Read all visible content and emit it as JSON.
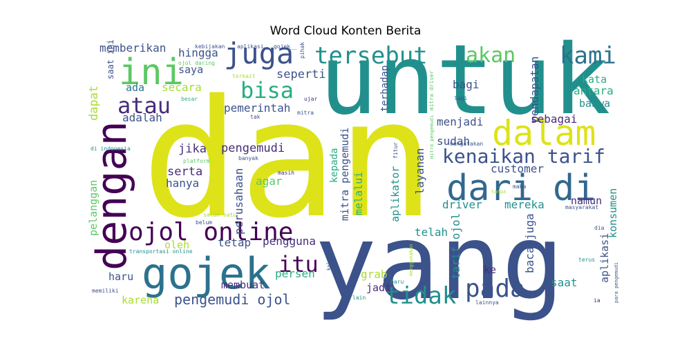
{
  "chart_data": {
    "type": "wordcloud",
    "title": "Word Cloud Konten Berita",
    "palette": [
      "#440154",
      "#472c7a",
      "#3b518b",
      "#2c718e",
      "#21908d",
      "#27ad81",
      "#5cc863",
      "#aadc32",
      "#dde318"
    ],
    "words": [
      {
        "text": "dan",
        "weight": 1.0,
        "color": "#dde318"
      },
      {
        "text": "untuk",
        "weight": 0.95,
        "color": "#21908d"
      },
      {
        "text": "yang",
        "weight": 0.93,
        "color": "#3b528b"
      },
      {
        "text": "dengan",
        "weight": 0.55,
        "color": "#440154"
      },
      {
        "text": "gojek",
        "weight": 0.42,
        "color": "#2c718e"
      },
      {
        "text": "ini",
        "weight": 0.41,
        "color": "#5cc863"
      },
      {
        "text": "dari",
        "weight": 0.38,
        "color": "#31688e"
      },
      {
        "text": "di",
        "weight": 0.38,
        "color": "#31688e"
      },
      {
        "text": "dalam",
        "weight": 0.36,
        "color": "#dde318"
      },
      {
        "text": "ojol online",
        "weight": 0.31,
        "color": "#440154"
      },
      {
        "text": "tersebut",
        "weight": 0.29,
        "color": "#21908d"
      },
      {
        "text": "kami",
        "weight": 0.27,
        "color": "#2c718e"
      },
      {
        "text": "akan",
        "weight": 0.27,
        "color": "#5cc863"
      },
      {
        "text": "juga",
        "weight": 0.3,
        "color": "#3b528b"
      },
      {
        "text": "tidak",
        "weight": 0.28,
        "color": "#21908d"
      },
      {
        "text": "pada",
        "weight": 0.28,
        "color": "#3b528b"
      },
      {
        "text": "bisa",
        "weight": 0.25,
        "color": "#27ad81"
      },
      {
        "text": "atau",
        "weight": 0.25,
        "color": "#472c7a"
      },
      {
        "text": "itu",
        "weight": 0.22,
        "color": "#440154"
      },
      {
        "text": "kenaikan tarif",
        "weight": 0.21,
        "color": "#3b528b"
      },
      {
        "text": "pengemudi ojol",
        "weight": 0.16,
        "color": "#3b528b"
      },
      {
        "text": "memberikan",
        "weight": 0.12,
        "color": "#3b528b"
      },
      {
        "text": "hingga",
        "weight": 0.12,
        "color": "#3b528b"
      },
      {
        "text": "saya",
        "weight": 0.11,
        "color": "#3b528b"
      },
      {
        "text": "secara",
        "weight": 0.12,
        "color": "#aadc32"
      },
      {
        "text": "ada",
        "weight": 0.1,
        "color": "#2c718e"
      },
      {
        "text": "adalah",
        "weight": 0.11,
        "color": "#3b528b"
      },
      {
        "text": "dapat",
        "weight": 0.12,
        "color": "#aadc32"
      },
      {
        "text": "seperti",
        "weight": 0.12,
        "color": "#3b528b"
      },
      {
        "text": "pemerintah",
        "weight": 0.12,
        "color": "#3b528b"
      },
      {
        "text": "terhadap",
        "weight": 0.1,
        "color": "#3b528b"
      },
      {
        "text": "pendapatan",
        "weight": 0.11,
        "color": "#3b528b"
      },
      {
        "text": "bagi",
        "weight": 0.11,
        "color": "#3b528b"
      },
      {
        "text": "kata",
        "weight": 0.11,
        "color": "#27ad81"
      },
      {
        "text": "antara",
        "weight": 0.11,
        "color": "#27ad81"
      },
      {
        "text": "bahwa",
        "weight": 0.1,
        "color": "#21908d"
      },
      {
        "text": "sebagai",
        "weight": 0.11,
        "color": "#472c7a"
      },
      {
        "text": "menjadi",
        "weight": 0.12,
        "color": "#3b528b"
      },
      {
        "text": "sudah",
        "weight": 0.11,
        "color": "#3b528b"
      },
      {
        "text": "jika",
        "weight": 0.12,
        "color": "#472c7a"
      },
      {
        "text": "pengemudi",
        "weight": 0.12,
        "color": "#472c7a"
      },
      {
        "text": "serta",
        "weight": 0.12,
        "color": "#472c7a"
      },
      {
        "text": "hanya",
        "weight": 0.12,
        "color": "#3b528b"
      },
      {
        "text": "perusahaan",
        "weight": 0.11,
        "color": "#3b528b"
      },
      {
        "text": "agar",
        "weight": 0.11,
        "color": "#5cc863"
      },
      {
        "text": "kepada",
        "weight": 0.1,
        "color": "#27ad81"
      },
      {
        "text": "melalui",
        "weight": 0.11,
        "color": "#27ad81"
      },
      {
        "text": "mitra pengemudi",
        "weight": 0.12,
        "color": "#3b528b"
      },
      {
        "text": "aplikator",
        "weight": 0.11,
        "color": "#21908d"
      },
      {
        "text": "layanan",
        "weight": 0.12,
        "color": "#3b528b"
      },
      {
        "text": "customer",
        "weight": 0.11,
        "color": "#3b528b"
      },
      {
        "text": "driver",
        "weight": 0.12,
        "color": "#21908d"
      },
      {
        "text": "mereka",
        "weight": 0.12,
        "color": "#21908d"
      },
      {
        "text": "namun",
        "weight": 0.11,
        "color": "#472c7a"
      },
      {
        "text": "konsumen",
        "weight": 0.11,
        "color": "#21908d"
      },
      {
        "text": "pelanggan",
        "weight": 0.1,
        "color": "#5cc863"
      },
      {
        "text": "oleh",
        "weight": 0.11,
        "color": "#aadc32"
      },
      {
        "text": "tetap",
        "weight": 0.11,
        "color": "#3b528b"
      },
      {
        "text": "pengguna",
        "weight": 0.12,
        "color": "#472c7a"
      },
      {
        "text": "telah",
        "weight": 0.11,
        "color": "#21908d"
      },
      {
        "text": "tarif ojol",
        "weight": 0.12,
        "color": "#21908d"
      },
      {
        "text": "baca juga",
        "weight": 0.12,
        "color": "#3b528b"
      },
      {
        "text": "aplikasi",
        "weight": 0.11,
        "color": "#3b528b"
      },
      {
        "text": "ke",
        "weight": 0.11,
        "color": "#472c7a"
      },
      {
        "text": "saat",
        "weight": 0.12,
        "color": "#21908d"
      },
      {
        "text": "haru",
        "weight": 0.11,
        "color": "#3b528b"
      },
      {
        "text": "membuat",
        "weight": 0.1,
        "color": "#472c7a"
      },
      {
        "text": "persen",
        "weight": 0.12,
        "color": "#27ad81"
      },
      {
        "text": "grab",
        "weight": 0.11,
        "color": "#aadc32"
      },
      {
        "text": "jadi",
        "weight": 0.11,
        "color": "#472c7a"
      },
      {
        "text": "karena",
        "weight": 0.11,
        "color": "#aadc32"
      },
      {
        "text": "kebijakan",
        "weight": 0.05,
        "color": "#3b528b"
      },
      {
        "text": "aplikasi __gojek__",
        "weight": 0.05,
        "color": "#3b528b"
      },
      {
        "text": "pihak",
        "weight": 0.04,
        "color": "#3b528b"
      },
      {
        "text": "ojol daring",
        "weight": 0.05,
        "color": "#5cc863"
      },
      {
        "text": "saat ini",
        "weight": 0.07,
        "color": "#3b528b"
      },
      {
        "text": "terkait",
        "weight": 0.05,
        "color": "#aadc32"
      },
      {
        "text": "besar",
        "weight": 0.05,
        "color": "#27ad81"
      },
      {
        "text": "ujar",
        "weight": 0.05,
        "color": "#472c7a"
      },
      {
        "text": "mitra",
        "weight": 0.05,
        "color": "#3b528b"
      },
      {
        "text": "tak",
        "weight": 0.04,
        "color": "#3b528b"
      },
      {
        "text": "mitra driver",
        "weight": 0.05,
        "color": "#5cc863"
      },
      {
        "text": "lagi",
        "weight": 0.05,
        "color": "#3b528b"
      },
      {
        "text": "mitra pengemudi",
        "weight": 0.04,
        "color": "#5cc863",
        "id": "small"
      },
      {
        "text": "mengatakan",
        "weight": 0.04,
        "color": "#3b528b"
      },
      {
        "text": "di indonesia",
        "weight": 0.05,
        "color": "#21908d"
      },
      {
        "text": "platform",
        "weight": 0.05,
        "color": "#5cc863"
      },
      {
        "text": "banyak",
        "weight": 0.05,
        "color": "#3b528b"
      },
      {
        "text": "fitur",
        "weight": 0.04,
        "color": "#3b528b"
      },
      {
        "text": "masih",
        "weight": 0.05,
        "color": "#472c7a"
      },
      {
        "text": "tanpa",
        "weight": 0.04,
        "color": "#aadc32"
      },
      {
        "text": "maka",
        "weight": 0.05,
        "color": "#3b528b"
      },
      {
        "text": "masyarakat",
        "weight": 0.05,
        "color": "#3b528b"
      },
      {
        "text": "salah satu",
        "weight": 0.05,
        "color": "#aadc32"
      },
      {
        "text": "belum",
        "weight": 0.05,
        "color": "#3b528b"
      },
      {
        "text": "transportasi online",
        "weight": 0.05,
        "color": "#21908d"
      },
      {
        "text": "dia",
        "weight": 0.05,
        "color": "#3b528b"
      },
      {
        "text": "terus",
        "weight": 0.05,
        "color": "#21908d"
      },
      {
        "text": "kalau",
        "weight": 0.04,
        "color": "#3b528b"
      },
      {
        "text": "menggunakan",
        "weight": 0.04,
        "color": "#aadc32"
      },
      {
        "text": "baru",
        "weight": 0.05,
        "color": "#21908d"
      },
      {
        "text": "memiliki",
        "weight": 0.05,
        "color": "#3b528b"
      },
      {
        "text": "lain",
        "weight": 0.05,
        "color": "#21908d"
      },
      {
        "text": "lainnya",
        "weight": 0.05,
        "color": "#3b528b"
      },
      {
        "text": "ia",
        "weight": 0.05,
        "color": "#472c7a"
      },
      {
        "text": "para pengemudi",
        "weight": 0.04,
        "color": "#3b528b"
      }
    ]
  }
}
